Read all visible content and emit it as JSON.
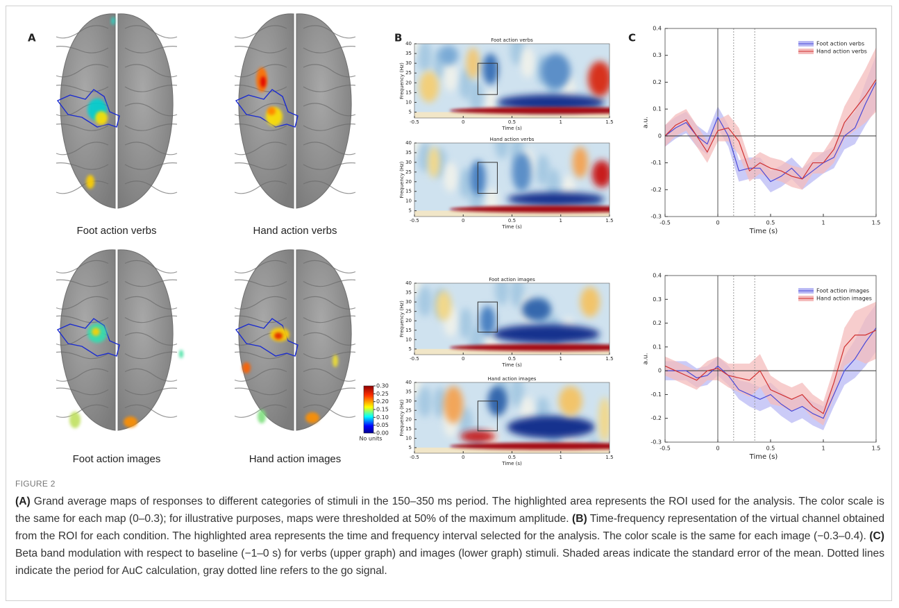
{
  "panel_a": {
    "label": "A",
    "maps": [
      {
        "label": "Foot action verbs"
      },
      {
        "label": "Hand action verbs"
      },
      {
        "label": "Foot action images"
      },
      {
        "label": "Hand action images"
      }
    ],
    "colorbar": {
      "lim": [
        0,
        0.3
      ],
      "ticks": [
        {
          "value": 0.3,
          "label": "0.30"
        },
        {
          "value": 0.25,
          "label": "0.25"
        },
        {
          "value": 0.2,
          "label": "0.20"
        },
        {
          "value": 0.15,
          "label": "0.15"
        },
        {
          "value": 0.1,
          "label": "0.10"
        },
        {
          "value": 0.05,
          "label": "0.05"
        },
        {
          "value": 0,
          "label": "0.00"
        }
      ],
      "unit_label": "No units"
    }
  },
  "panel_b": {
    "label": "B"
  },
  "panel_c": {
    "label": "C"
  },
  "chart_data": [
    {
      "type": "spectrogram",
      "title": "Foot action verbs",
      "xlabel": "Time (s)",
      "ylabel": "Frequency (Hz)",
      "xlim": [
        -0.5,
        1.5
      ],
      "ylim": [
        2,
        40
      ],
      "xticks": [
        -0.5,
        0,
        0.5,
        1,
        1.5
      ],
      "yticks": [
        5,
        10,
        15,
        20,
        25,
        30,
        35,
        40
      ],
      "highlight": {
        "x": [
          0.15,
          0.35
        ],
        "y": [
          14,
          30
        ]
      }
    },
    {
      "type": "spectrogram",
      "title": "Hand action verbs",
      "xlabel": "Time (s)",
      "ylabel": "Frequency (Hz)",
      "xlim": [
        -0.5,
        1.5
      ],
      "ylim": [
        2,
        40
      ],
      "xticks": [
        -0.5,
        0,
        0.5,
        1,
        1.5
      ],
      "yticks": [
        5,
        10,
        15,
        20,
        25,
        30,
        35,
        40
      ],
      "highlight": {
        "x": [
          0.15,
          0.35
        ],
        "y": [
          14,
          30
        ]
      }
    },
    {
      "type": "spectrogram",
      "title": "Foot action images",
      "xlabel": "Time (s)",
      "ylabel": "Frequency (Hz)",
      "xlim": [
        -0.5,
        1.5
      ],
      "ylim": [
        2,
        40
      ],
      "xticks": [
        -0.5,
        0,
        0.5,
        1,
        1.5
      ],
      "yticks": [
        5,
        10,
        15,
        20,
        25,
        30,
        35,
        40
      ],
      "highlight": {
        "x": [
          0.15,
          0.35
        ],
        "y": [
          14,
          30
        ]
      }
    },
    {
      "type": "spectrogram",
      "title": "Hand action images",
      "xlabel": "Time (s)",
      "ylabel": "Frequency (Hz)",
      "xlim": [
        -0.5,
        1.5
      ],
      "ylim": [
        2,
        40
      ],
      "xticks": [
        -0.5,
        0,
        0.5,
        1,
        1.5
      ],
      "yticks": [
        5,
        10,
        15,
        20,
        25,
        30,
        35,
        40
      ],
      "highlight": {
        "x": [
          0.15,
          0.35
        ],
        "y": [
          14,
          30
        ]
      }
    },
    {
      "type": "line",
      "xlabel": "Time (s)",
      "ylabel": "a.u.",
      "xlim": [
        -0.5,
        1.5
      ],
      "ylim": [
        -0.3,
        0.4
      ],
      "xticks": [
        -0.5,
        0,
        0.5,
        1,
        1.5
      ],
      "yticks": [
        0.4,
        0.3,
        0.2,
        0.1,
        0,
        -0.1,
        -0.2,
        -0.3
      ],
      "hline": 0,
      "vlines": [
        {
          "value": 0,
          "style": "solid"
        },
        {
          "value": 0.15,
          "style": "dotted"
        },
        {
          "value": 0.35,
          "style": "dotted"
        }
      ],
      "x": [
        -0.5,
        -0.4,
        -0.3,
        -0.2,
        -0.1,
        0,
        0.1,
        0.2,
        0.3,
        0.4,
        0.5,
        0.6,
        0.7,
        0.8,
        0.9,
        1,
        1.1,
        1.2,
        1.3,
        1.4,
        1.5
      ],
      "series": [
        {
          "name": "Foot action verbs",
          "color": "#4a4ad8",
          "band_color": "#b9b9f4",
          "values": [
            0.0,
            0.03,
            0.05,
            0.0,
            -0.03,
            0.07,
            0.0,
            -0.13,
            -0.12,
            -0.12,
            -0.17,
            -0.15,
            -0.12,
            -0.16,
            -0.13,
            -0.1,
            -0.08,
            0.0,
            0.03,
            0.12,
            0.2
          ],
          "errors": [
            0.04,
            0.04,
            0.04,
            0.04,
            0.04,
            0.04,
            0.04,
            0.04,
            0.04,
            0.04,
            0.04,
            0.04,
            0.04,
            0.04,
            0.04,
            0.04,
            0.04,
            0.05,
            0.06,
            0.08,
            0.1
          ]
        },
        {
          "name": "Hand action verbs",
          "color": "#d03030",
          "band_color": "#f4bcbc",
          "values": [
            0.0,
            0.04,
            0.06,
            0.0,
            -0.06,
            0.02,
            0.03,
            -0.02,
            -0.13,
            -0.1,
            -0.12,
            -0.13,
            -0.15,
            -0.16,
            -0.1,
            -0.1,
            -0.05,
            0.05,
            0.1,
            0.15,
            0.21
          ],
          "errors": [
            0.04,
            0.04,
            0.04,
            0.04,
            0.04,
            0.04,
            0.05,
            0.05,
            0.04,
            0.04,
            0.04,
            0.04,
            0.04,
            0.04,
            0.04,
            0.04,
            0.05,
            0.06,
            0.08,
            0.1,
            0.12
          ]
        }
      ],
      "legend": "upper right"
    },
    {
      "type": "line",
      "xlabel": "Time (s)",
      "ylabel": "a.u.",
      "xlim": [
        -0.5,
        1.5
      ],
      "ylim": [
        -0.3,
        0.4
      ],
      "xticks": [
        -0.5,
        0,
        0.5,
        1,
        1.5
      ],
      "yticks": [
        0.4,
        0.3,
        0.2,
        0.1,
        0,
        -0.1,
        -0.2,
        -0.3
      ],
      "hline": 0,
      "vlines": [
        {
          "value": 0,
          "style": "solid"
        },
        {
          "value": 0.15,
          "style": "dotted"
        },
        {
          "value": 0.35,
          "style": "dotted"
        }
      ],
      "x": [
        -0.5,
        -0.4,
        -0.3,
        -0.2,
        -0.1,
        0,
        0.1,
        0.2,
        0.3,
        0.4,
        0.5,
        0.6,
        0.7,
        0.8,
        0.9,
        1,
        1.1,
        1.2,
        1.3,
        1.4,
        1.5
      ],
      "series": [
        {
          "name": "Foot action images",
          "color": "#4a4ad8",
          "band_color": "#b9b9f4",
          "values": [
            0.0,
            0.0,
            0.0,
            -0.03,
            -0.02,
            0.02,
            -0.02,
            -0.08,
            -0.1,
            -0.12,
            -0.1,
            -0.14,
            -0.17,
            -0.15,
            -0.18,
            -0.2,
            -0.1,
            0.0,
            0.05,
            0.12,
            0.18
          ],
          "errors": [
            0.04,
            0.04,
            0.04,
            0.04,
            0.04,
            0.04,
            0.04,
            0.04,
            0.05,
            0.05,
            0.05,
            0.05,
            0.05,
            0.05,
            0.05,
            0.05,
            0.05,
            0.06,
            0.08,
            0.1,
            0.1
          ]
        },
        {
          "name": "Hand action images",
          "color": "#d03030",
          "band_color": "#f4bcbc",
          "values": [
            0.02,
            0.0,
            -0.02,
            -0.04,
            0.0,
            0.01,
            -0.02,
            -0.03,
            -0.04,
            0.0,
            -0.08,
            -0.1,
            -0.12,
            -0.1,
            -0.15,
            -0.18,
            -0.05,
            0.1,
            0.15,
            0.15,
            0.17
          ],
          "errors": [
            0.04,
            0.04,
            0.04,
            0.04,
            0.04,
            0.05,
            0.05,
            0.06,
            0.07,
            0.07,
            0.06,
            0.05,
            0.05,
            0.05,
            0.05,
            0.05,
            0.06,
            0.08,
            0.1,
            0.12,
            0.12
          ]
        }
      ],
      "legend": "upper right"
    }
  ],
  "caption": {
    "figure_label": "FIGURE 2",
    "parts": [
      {
        "label": "(A)",
        "text": "Grand average maps of responses to different categories of stimuli in the 150–350 ms period. The highlighted area represents the ROI used for the analysis. The color scale is the same for each map (0–0.3); for illustrative purposes, maps were thresholded at 50% of the maximum amplitude."
      },
      {
        "label": "(B)",
        "text": "Time-frequency representation of the virtual channel obtained from the ROI for each condition. The highlighted area represents the time and frequency interval selected for the analysis. The color scale is the same for each image (−0.3–0.4)."
      },
      {
        "label": "(C)",
        "text": "Beta band modulation with respect to baseline (−1–0 s) for verbs (upper graph) and images (lower graph) stimuli. Shaded areas indicate the standard error of the mean. Dotted lines indicate the period for AuC calculation, gray dotted line refers to the go signal."
      }
    ]
  }
}
